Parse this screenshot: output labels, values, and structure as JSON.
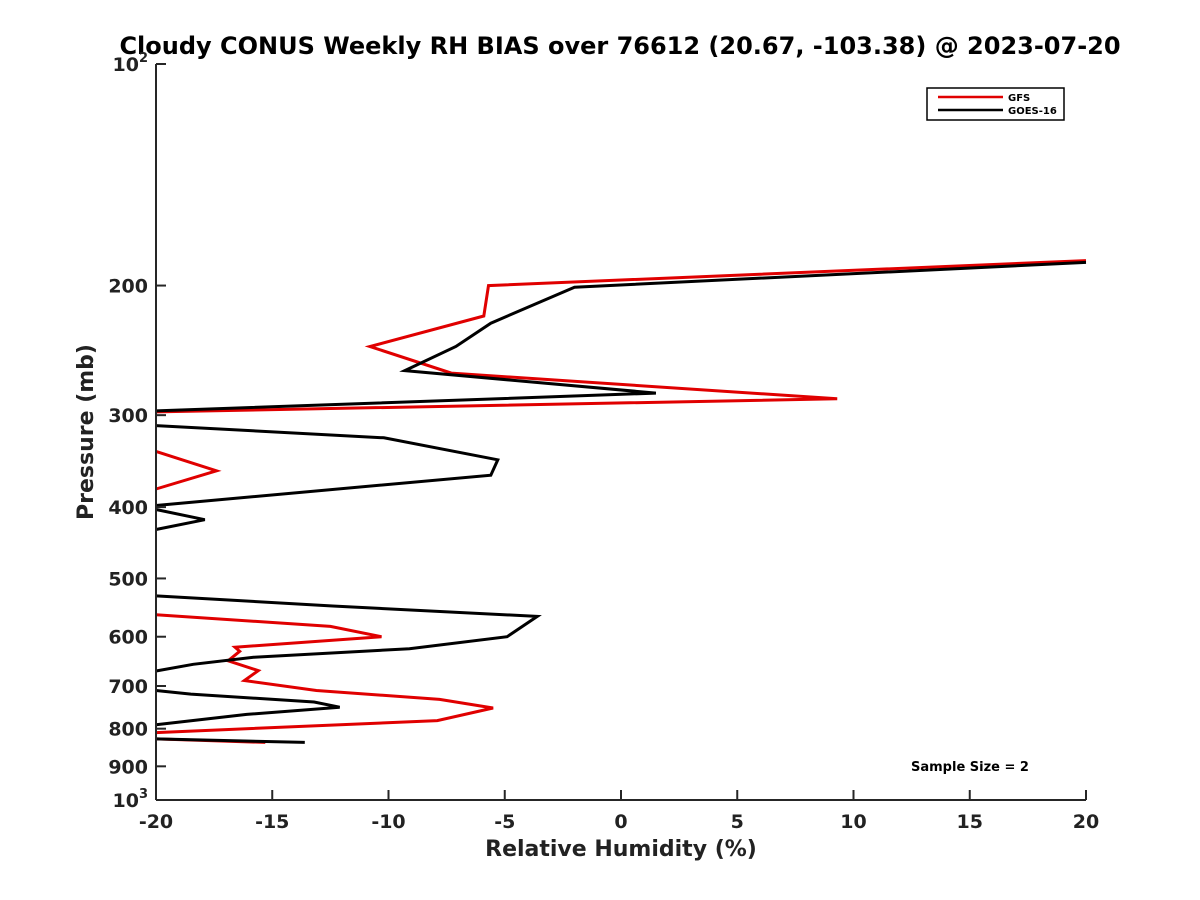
{
  "chart_data": {
    "type": "line",
    "orientation": "profile",
    "title": "Cloudy CONUS Weekly RH BIAS over 76612 (20.67, -103.38) @ 2023-07-20",
    "xlabel": "Relative Humidity (%)",
    "ylabel": "Pressure (mb)",
    "xlim": [
      -20,
      20
    ],
    "ylim": [
      100,
      1000
    ],
    "yscale": "log",
    "y_reversed": true,
    "x_ticks": [
      "-20",
      "-15",
      "-10",
      "-5",
      "0",
      "5",
      "10",
      "15",
      "20"
    ],
    "y_ticks": [
      {
        "value": 100,
        "base": "10",
        "exp": "2"
      },
      {
        "value": 200,
        "label": "200"
      },
      {
        "value": 300,
        "label": "300"
      },
      {
        "value": 400,
        "label": "400"
      },
      {
        "value": 500,
        "label": "500"
      },
      {
        "value": 600,
        "label": "600"
      },
      {
        "value": 700,
        "label": "700"
      },
      {
        "value": 800,
        "label": "800"
      },
      {
        "value": 900,
        "label": "900"
      },
      {
        "value": 1000,
        "base": "10",
        "exp": "3"
      }
    ],
    "legend_position": "top-right",
    "annotation": "Sample Size = 2",
    "series": [
      {
        "name": "GFS",
        "color": "#e00000",
        "segments": [
          [
            [
              20.0,
              185
            ],
            [
              -5.7,
              200
            ],
            [
              -5.9,
              220
            ],
            [
              -10.8,
              242
            ],
            [
              -7.3,
              263
            ],
            [
              9.3,
              285
            ],
            [
              -20.0,
              297
            ]
          ],
          [
            [
              -20.0,
              336
            ],
            [
              -17.4,
              357
            ],
            [
              -20.0,
              378
            ]
          ],
          [
            [
              -20.0,
              560
            ],
            [
              -12.5,
              581
            ],
            [
              -10.3,
              600
            ],
            [
              -16.6,
              620
            ],
            [
              -16.4,
              628
            ],
            [
              -16.9,
              647
            ],
            [
              -15.6,
              667
            ],
            [
              -16.2,
              688
            ],
            [
              -13.1,
              710
            ],
            [
              -7.8,
              730
            ],
            [
              -5.5,
              750
            ],
            [
              -7.9,
              780
            ],
            [
              -20.0,
              810
            ]
          ],
          [
            [
              -20.0,
              826
            ],
            [
              -15.3,
              835
            ]
          ]
        ]
      },
      {
        "name": "GOES-16",
        "color": "#000000",
        "segments": [
          [
            [
              20.0,
              186
            ],
            [
              -2.0,
              201
            ],
            [
              -5.6,
              225
            ],
            [
              -7.1,
              242
            ],
            [
              -9.3,
              261
            ],
            [
              1.5,
              280
            ],
            [
              -20.0,
              296
            ]
          ],
          [
            [
              -20.0,
              310
            ],
            [
              -10.2,
              322
            ],
            [
              -5.3,
              345
            ],
            [
              -5.6,
              362
            ],
            [
              -20.0,
              398
            ]
          ],
          [
            [
              -20.0,
              403
            ],
            [
              -17.9,
              416
            ],
            [
              -20.0,
              429
            ]
          ],
          [
            [
              -20.0,
              528
            ],
            [
              -12.4,
              545
            ],
            [
              -3.6,
              563
            ],
            [
              -4.9,
              600
            ],
            [
              -9.1,
              623
            ],
            [
              -15.8,
              640
            ],
            [
              -18.4,
              654
            ],
            [
              -20.0,
              668
            ]
          ],
          [
            [
              -20.0,
              710
            ],
            [
              -18.5,
              718
            ],
            [
              -13.2,
              736
            ],
            [
              -12.1,
              748
            ],
            [
              -16.1,
              765
            ],
            [
              -20.0,
              790
            ]
          ],
          [
            [
              -20.0,
              826
            ],
            [
              -13.6,
              835
            ]
          ]
        ]
      }
    ]
  }
}
